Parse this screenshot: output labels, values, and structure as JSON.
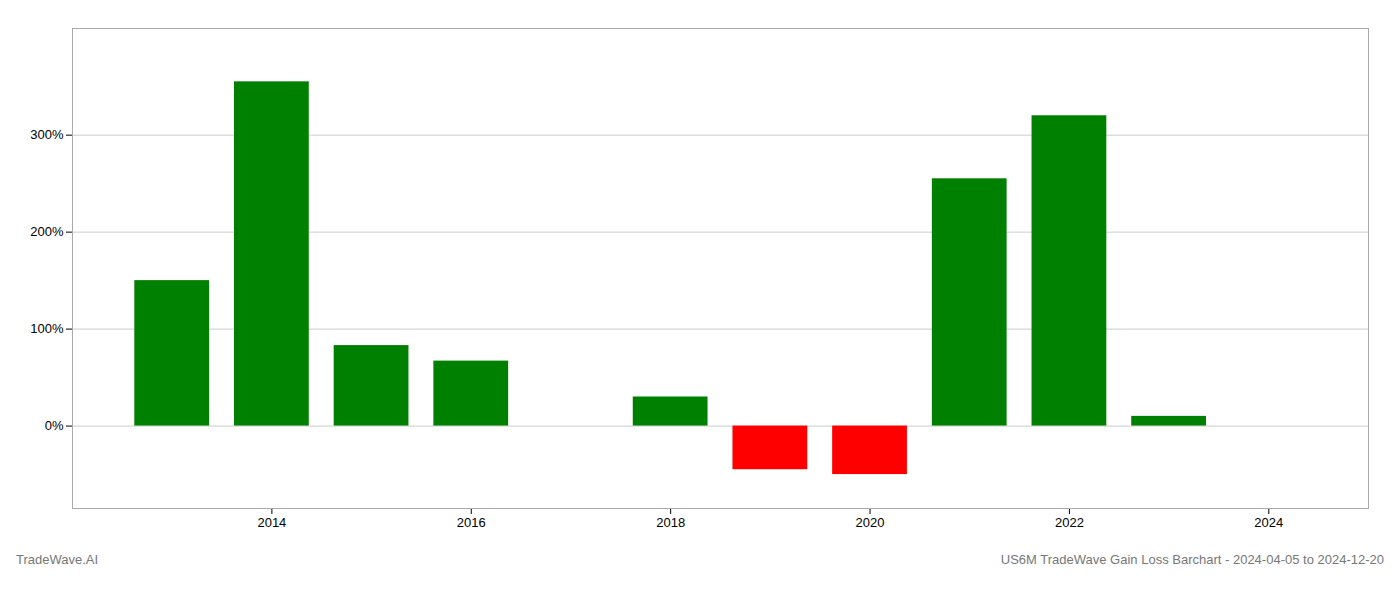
{
  "chart_data": {
    "type": "bar",
    "x": [
      2013,
      2014,
      2015,
      2016,
      2017,
      2018,
      2019,
      2020,
      2021,
      2022,
      2023
    ],
    "values": [
      150,
      355,
      83,
      67,
      0,
      30,
      -45,
      -50,
      255,
      320,
      10
    ],
    "colors": [
      "#008000",
      "#008000",
      "#008000",
      "#008000",
      "#008000",
      "#008000",
      "#ff0000",
      "#ff0000",
      "#008000",
      "#008000",
      "#008000"
    ],
    "xlim": [
      2012,
      2025
    ],
    "xticks": [
      2014,
      2016,
      2018,
      2020,
      2022,
      2024
    ],
    "ylim": [
      -85,
      410
    ],
    "yticks": [
      {
        "value": 0,
        "label": "0%"
      },
      {
        "value": 100,
        "label": "100%"
      },
      {
        "value": 200,
        "label": "200%"
      },
      {
        "value": 300,
        "label": "300%"
      }
    ],
    "grid": true,
    "annotations": [
      "TradeWave.AI",
      "US6M TradeWave Gain Loss Barchart - 2024-04-05 to 2024-12-20"
    ]
  }
}
